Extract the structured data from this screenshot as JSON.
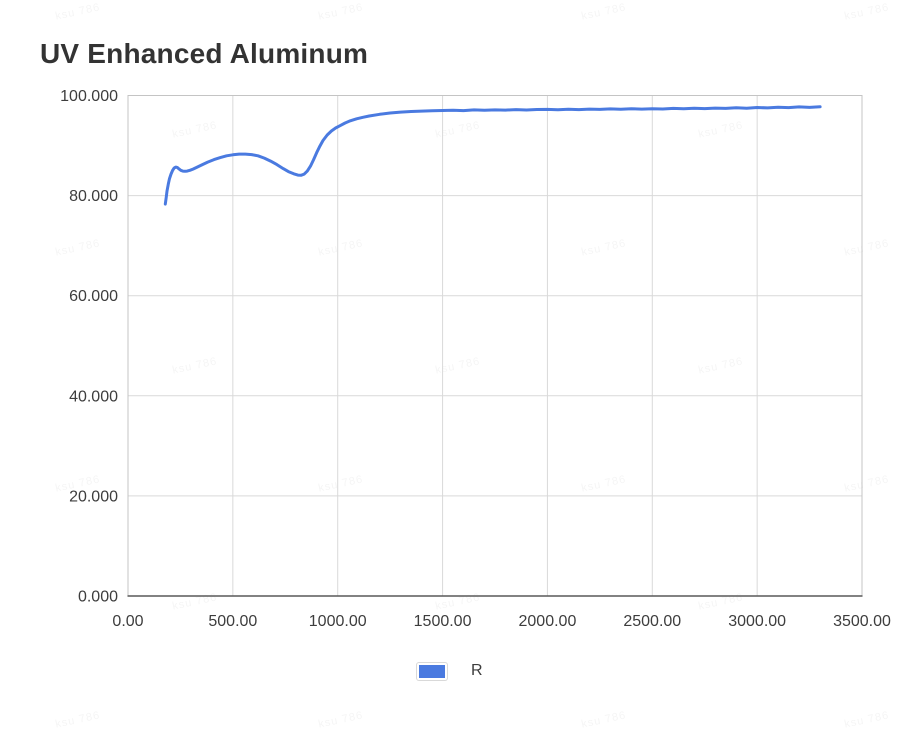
{
  "watermark": {
    "text": "ksu 786"
  },
  "chart_data": {
    "type": "line",
    "title": "UV Enhanced Aluminum",
    "xlabel": "",
    "ylabel": "",
    "xlim": [
      0,
      3500
    ],
    "ylim": [
      0,
      100
    ],
    "grid": true,
    "legend_position": "bottom",
    "colors": {
      "grid": "#d9d9d9",
      "border": "#c4c4c4",
      "axis": "#595959",
      "tick_text": "#3d3d3d",
      "title_text": "#333333"
    },
    "x_ticks": [
      {
        "v": 0,
        "label": "0.00"
      },
      {
        "v": 500,
        "label": "500.00"
      },
      {
        "v": 1000,
        "label": "1000.00"
      },
      {
        "v": 1500,
        "label": "1500.00"
      },
      {
        "v": 2000,
        "label": "2000.00"
      },
      {
        "v": 2500,
        "label": "2500.00"
      },
      {
        "v": 3000,
        "label": "3000.00"
      },
      {
        "v": 3500,
        "label": "3500.00"
      }
    ],
    "y_ticks": [
      {
        "v": 0,
        "label": "0.000"
      },
      {
        "v": 20,
        "label": "20.000"
      },
      {
        "v": 40,
        "label": "40.000"
      },
      {
        "v": 60,
        "label": "60.000"
      },
      {
        "v": 80,
        "label": "80.000"
      },
      {
        "v": 100,
        "label": "100.000"
      }
    ],
    "series": [
      {
        "name": "R",
        "color": "#4a7ae0",
        "points": [
          [
            178,
            78.3
          ],
          [
            182,
            79.6
          ],
          [
            186,
            80.9
          ],
          [
            192,
            82.3
          ],
          [
            198,
            83.4
          ],
          [
            205,
            84.3
          ],
          [
            212,
            85.0
          ],
          [
            220,
            85.5
          ],
          [
            228,
            85.7
          ],
          [
            236,
            85.6
          ],
          [
            244,
            85.3
          ],
          [
            252,
            85.05
          ],
          [
            262,
            84.9
          ],
          [
            272,
            84.85
          ],
          [
            282,
            84.9
          ],
          [
            295,
            85.05
          ],
          [
            310,
            85.3
          ],
          [
            330,
            85.7
          ],
          [
            355,
            86.2
          ],
          [
            380,
            86.7
          ],
          [
            410,
            87.2
          ],
          [
            440,
            87.6
          ],
          [
            470,
            87.95
          ],
          [
            500,
            88.15
          ],
          [
            530,
            88.3
          ],
          [
            560,
            88.3
          ],
          [
            590,
            88.2
          ],
          [
            620,
            87.95
          ],
          [
            650,
            87.5
          ],
          [
            680,
            86.9
          ],
          [
            710,
            86.2
          ],
          [
            740,
            85.4
          ],
          [
            765,
            84.8
          ],
          [
            790,
            84.35
          ],
          [
            810,
            84.1
          ],
          [
            825,
            84.05
          ],
          [
            840,
            84.3
          ],
          [
            855,
            84.9
          ],
          [
            870,
            85.9
          ],
          [
            885,
            87.2
          ],
          [
            900,
            88.6
          ],
          [
            915,
            89.9
          ],
          [
            930,
            91.0
          ],
          [
            950,
            92.1
          ],
          [
            970,
            92.9
          ],
          [
            990,
            93.5
          ],
          [
            1010,
            93.95
          ],
          [
            1035,
            94.5
          ],
          [
            1060,
            94.95
          ],
          [
            1090,
            95.35
          ],
          [
            1120,
            95.65
          ],
          [
            1150,
            95.9
          ],
          [
            1200,
            96.25
          ],
          [
            1250,
            96.5
          ],
          [
            1300,
            96.68
          ],
          [
            1350,
            96.8
          ],
          [
            1400,
            96.88
          ],
          [
            1450,
            96.95
          ],
          [
            1500,
            97.0
          ],
          [
            1550,
            97.07
          ],
          [
            1600,
            96.98
          ],
          [
            1650,
            97.12
          ],
          [
            1700,
            97.05
          ],
          [
            1750,
            97.13
          ],
          [
            1800,
            97.08
          ],
          [
            1850,
            97.19
          ],
          [
            1900,
            97.11
          ],
          [
            1950,
            97.2
          ],
          [
            2000,
            97.22
          ],
          [
            2050,
            97.15
          ],
          [
            2100,
            97.26
          ],
          [
            2150,
            97.18
          ],
          [
            2200,
            97.28
          ],
          [
            2250,
            97.22
          ],
          [
            2300,
            97.32
          ],
          [
            2350,
            97.24
          ],
          [
            2400,
            97.35
          ],
          [
            2450,
            97.28
          ],
          [
            2500,
            97.36
          ],
          [
            2550,
            97.3
          ],
          [
            2600,
            97.42
          ],
          [
            2650,
            97.34
          ],
          [
            2700,
            97.44
          ],
          [
            2750,
            97.38
          ],
          [
            2800,
            97.48
          ],
          [
            2850,
            97.42
          ],
          [
            2900,
            97.55
          ],
          [
            2950,
            97.46
          ],
          [
            3000,
            97.6
          ],
          [
            3050,
            97.52
          ],
          [
            3100,
            97.65
          ],
          [
            3150,
            97.58
          ],
          [
            3200,
            97.72
          ],
          [
            3250,
            97.62
          ],
          [
            3300,
            97.75
          ]
        ]
      }
    ]
  }
}
